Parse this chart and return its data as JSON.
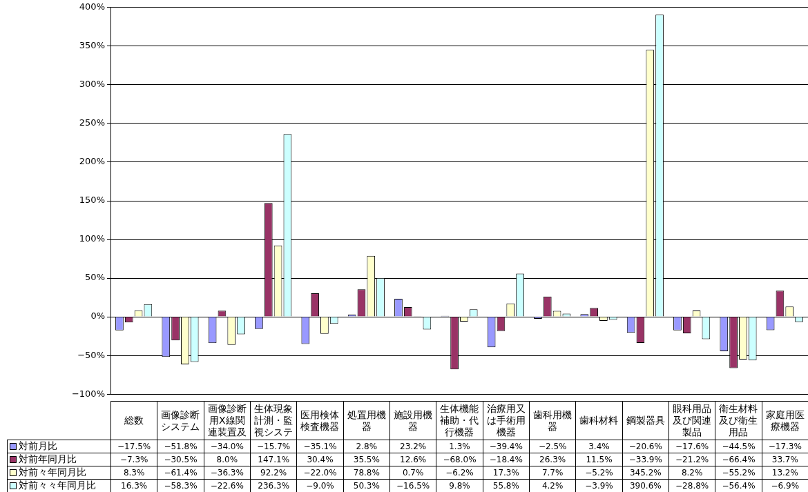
{
  "chart_data": {
    "type": "bar",
    "categories": [
      "総数",
      "画像診断システム",
      "画像診断用X線関連装置及",
      "生体現象計測・監視システ",
      "医用検体検査機器",
      "処置用機器",
      "施設用機器",
      "生体機能補助・代行機器",
      "治療用又は手術用機器",
      "歯科用機器",
      "歯科材料",
      "鋼製器具",
      "眼科用品及び関連製品",
      "衛生材料及び衛生用品",
      "家庭用医療機器"
    ],
    "series": [
      {
        "name": "対前月比",
        "color": "#9999ff",
        "values": [
          -17.5,
          -51.8,
          -34.0,
          -15.7,
          -35.1,
          2.8,
          23.2,
          1.3,
          -39.4,
          -2.5,
          3.4,
          -20.6,
          -17.6,
          -44.5,
          -17.3
        ],
        "value_labels": [
          "−17.5%",
          "−51.8%",
          "−34.0%",
          "−15.7%",
          "−35.1%",
          "2.8%",
          "23.2%",
          "1.3%",
          "−39.4%",
          "−2.5%",
          "3.4%",
          "−20.6%",
          "−17.6%",
          "−44.5%",
          "−17.3%"
        ]
      },
      {
        "name": "対前年同月比",
        "color": "#993366",
        "values": [
          -7.3,
          -30.5,
          8.0,
          147.1,
          30.4,
          35.5,
          12.6,
          -68.0,
          -18.4,
          26.3,
          11.5,
          -33.9,
          -21.2,
          -66.4,
          33.7
        ],
        "value_labels": [
          "−7.3%",
          "−30.5%",
          "8.0%",
          "147.1%",
          "30.4%",
          "35.5%",
          "12.6%",
          "−68.0%",
          "−18.4%",
          "26.3%",
          "11.5%",
          "−33.9%",
          "−21.2%",
          "−66.4%",
          "33.7%"
        ]
      },
      {
        "name": "対前々年同月比",
        "color": "#ffffcc",
        "values": [
          8.3,
          -61.4,
          -36.3,
          92.2,
          -22.0,
          78.8,
          0.7,
          -6.2,
          17.3,
          7.7,
          -5.2,
          345.2,
          8.2,
          -55.2,
          13.2
        ],
        "value_labels": [
          "8.3%",
          "−61.4%",
          "−36.3%",
          "92.2%",
          "−22.0%",
          "78.8%",
          "0.7%",
          "−6.2%",
          "17.3%",
          "7.7%",
          "−5.2%",
          "345.2%",
          "8.2%",
          "−55.2%",
          "13.2%"
        ]
      },
      {
        "name": "対前々々年同月比",
        "color": "#ccffff",
        "values": [
          16.3,
          -58.3,
          -22.6,
          236.3,
          -9.0,
          50.3,
          -16.5,
          9.8,
          55.8,
          4.2,
          -3.9,
          390.6,
          -28.8,
          -56.4,
          -6.9
        ],
        "value_labels": [
          "16.3%",
          "−58.3%",
          "−22.6%",
          "236.3%",
          "−9.0%",
          "50.3%",
          "−16.5%",
          "9.8%",
          "55.8%",
          "4.2%",
          "−3.9%",
          "390.6%",
          "−28.8%",
          "−56.4%",
          "−6.9%"
        ]
      }
    ],
    "ylim": [
      -100,
      400
    ],
    "yticks": [
      {
        "value": -100,
        "label": "−100%"
      },
      {
        "value": -50,
        "label": "−50%"
      },
      {
        "value": 0,
        "label": "0%"
      },
      {
        "value": 50,
        "label": "50%"
      },
      {
        "value": 100,
        "label": "100%"
      },
      {
        "value": 150,
        "label": "150%"
      },
      {
        "value": 200,
        "label": "200%"
      },
      {
        "value": 250,
        "label": "250%"
      },
      {
        "value": 300,
        "label": "300%"
      },
      {
        "value": 350,
        "label": "350%"
      },
      {
        "value": 400,
        "label": "400%"
      }
    ],
    "grid": "y",
    "legend": "bottom"
  }
}
